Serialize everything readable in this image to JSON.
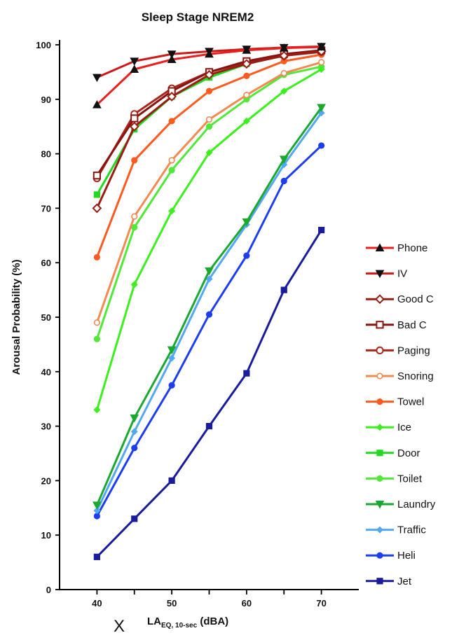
{
  "chart_data": {
    "type": "line",
    "title": "Sleep  Stage NREM2",
    "xlabel_prefix": "X",
    "xlabel_main": "LA",
    "xlabel_sub": "EQ, 10-sec",
    "xlabel_unit": " (dBA)",
    "ylabel": "Arousal  Probability (%)",
    "x": [
      40,
      45,
      50,
      55,
      60,
      65,
      70
    ],
    "xticks": [
      40,
      50,
      60,
      70
    ],
    "xlim": [
      35,
      75
    ],
    "yticks": [
      0,
      10,
      20,
      30,
      40,
      50,
      60,
      70,
      80,
      90,
      100
    ],
    "ylim": [
      0,
      100
    ],
    "grid": false,
    "legend_position": "right",
    "series": [
      {
        "name": "Phone",
        "color": "#e8201f",
        "marker": "triangle-up",
        "values": [
          89,
          95.5,
          97.3,
          98.3,
          99,
          99.4,
          99.6
        ]
      },
      {
        "name": "IV",
        "color": "#cc1a1a",
        "marker": "triangle-down",
        "values": [
          94,
          97,
          98.3,
          98.8,
          99.2,
          99.5,
          99.7
        ]
      },
      {
        "name": "Good C",
        "color": "#9a1c14",
        "marker": "diamond-open",
        "values": [
          70,
          85,
          90.5,
          94.5,
          96.5,
          98,
          98.8
        ]
      },
      {
        "name": "Bad C",
        "color": "#8a1410",
        "marker": "square-open",
        "values": [
          76,
          86.5,
          91.5,
          95,
          97,
          98.3,
          99
        ]
      },
      {
        "name": "Paging",
        "color": "#a9261c",
        "marker": "circle-open",
        "values": [
          75.5,
          87.3,
          92,
          95,
          96.8,
          98,
          98.7
        ]
      },
      {
        "name": "Snoring",
        "color": "#f28a52",
        "marker": "circle-open-small",
        "values": [
          49,
          68.5,
          78.8,
          86.3,
          90.8,
          94.8,
          96.8
        ]
      },
      {
        "name": "Towel",
        "color": "#ff5a1f",
        "marker": "circle-filled",
        "values": [
          61,
          78.8,
          86,
          91.5,
          94.3,
          97,
          98.2
        ]
      },
      {
        "name": "Ice",
        "color": "#3bf01c",
        "marker": "diamond-filled",
        "values": [
          33,
          56,
          69.5,
          80.2,
          86,
          91.5,
          95.5
        ]
      },
      {
        "name": "Door",
        "color": "#22d820",
        "marker": "square-filled",
        "values": [
          72.5,
          84.5,
          90.5,
          94,
          96.5,
          98.2,
          98.8
        ]
      },
      {
        "name": "Toilet",
        "color": "#52e83a",
        "marker": "circle-filled",
        "values": [
          46,
          66.5,
          77,
          85,
          90,
          94.5,
          96
        ]
      },
      {
        "name": "Laundry",
        "color": "#1aa82e",
        "marker": "triangle-down",
        "values": [
          15.5,
          31.5,
          44,
          58.5,
          67.5,
          79,
          88.5
        ]
      },
      {
        "name": "Traffic",
        "color": "#52a8f2",
        "marker": "diamond-filled",
        "values": [
          14.5,
          29,
          42.5,
          57,
          67,
          78,
          87.5
        ]
      },
      {
        "name": "Heli",
        "color": "#1c3ef0",
        "marker": "circle-filled",
        "values": [
          13.5,
          26,
          37.5,
          50.5,
          61.3,
          75,
          81.5
        ]
      },
      {
        "name": "Jet",
        "color": "#1a1c9c",
        "marker": "square-filled",
        "values": [
          6,
          13,
          20,
          30,
          39.7,
          55,
          66
        ]
      }
    ]
  }
}
